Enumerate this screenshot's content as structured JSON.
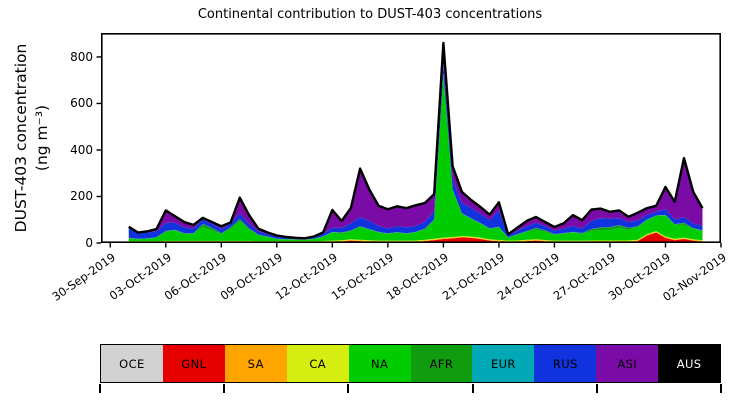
{
  "figure": {
    "title": "Continental contribution to DUST-403 concentrations"
  },
  "y_axis": {
    "label": "DUST-403 concentration",
    "unit_label": "(ng m⁻³)",
    "tick_values": [
      0,
      200,
      400,
      600,
      800
    ],
    "max_value": 903
  },
  "x_axis": {
    "tick_labels": [
      "30-Sep-2019",
      "03-Oct-2019",
      "06-Oct-2019",
      "09-Oct-2019",
      "12-Oct-2019",
      "15-Oct-2019",
      "18-Oct-2019",
      "21-Oct-2019",
      "24-Oct-2019",
      "27-Oct-2019",
      "30-Oct-2019",
      "02-Nov-2019"
    ],
    "tick_day_offsets": [
      -1,
      2,
      5,
      8,
      11,
      14,
      17,
      20,
      23,
      26,
      29,
      32
    ]
  },
  "legend": {
    "tick_boundaries": [
      0,
      2,
      4,
      6,
      8,
      10
    ]
  },
  "chart_data": {
    "type": "area",
    "stacked": true,
    "title": "Continental contribution to DUST-403 concentrations",
    "xlabel": "",
    "ylabel": "DUST-403 concentration (ng m⁻³)",
    "grid": false,
    "legend_position": "bottom",
    "ylim": [
      0,
      903
    ],
    "xlim_days": [
      -1.5,
      32
    ],
    "x_unit": "days since 01-Oct-2019 00:00 (0.5 = 12 h)",
    "x": [
      0,
      0.5,
      1,
      1.5,
      2,
      2.5,
      3,
      3.5,
      4,
      4.5,
      5,
      5.5,
      6,
      6.5,
      7,
      7.5,
      8,
      8.5,
      9,
      9.5,
      10,
      10.5,
      11,
      11.5,
      12,
      12.5,
      13,
      13.5,
      14,
      14.5,
      15,
      15.5,
      16,
      16.5,
      17,
      17.5,
      18,
      18.5,
      19,
      19.5,
      20,
      20.5,
      21,
      21.5,
      22,
      22.5,
      23,
      23.5,
      24,
      24.5,
      25,
      25.5,
      26,
      26.5,
      27,
      27.5,
      28,
      28.5,
      29,
      29.5,
      30,
      30.5,
      31
    ],
    "total_outline_color": "#000000",
    "series": [
      {
        "name": "OCE",
        "color": "#d2d2d2",
        "label_color": "#000000",
        "values": [
          2,
          2,
          2,
          2,
          2,
          2,
          2,
          2,
          2,
          2,
          2,
          2,
          2,
          2,
          2,
          2,
          2,
          2,
          2,
          2,
          2,
          2,
          2,
          2,
          2,
          2,
          2,
          2,
          2,
          2,
          2,
          2,
          2,
          2,
          2,
          2,
          2,
          2,
          2,
          2,
          2,
          2,
          2,
          2,
          2,
          2,
          2,
          2,
          2,
          2,
          2,
          2,
          2,
          2,
          2,
          2,
          2,
          2,
          2,
          2,
          2,
          2,
          2
        ]
      },
      {
        "name": "GNL",
        "color": "#e60000",
        "label_color": "#000000",
        "values": [
          0,
          0,
          0,
          0,
          1,
          1,
          1,
          1,
          1,
          1,
          1,
          1,
          1,
          1,
          0,
          0,
          0,
          0,
          0,
          0,
          0,
          1,
          2,
          4,
          8,
          6,
          4,
          2,
          2,
          2,
          2,
          3,
          6,
          10,
          15,
          18,
          22,
          20,
          15,
          8,
          5,
          2,
          3,
          6,
          8,
          5,
          2,
          2,
          2,
          2,
          3,
          3,
          3,
          3,
          3,
          6,
          30,
          43,
          20,
          10,
          15,
          8,
          4
        ]
      },
      {
        "name": "SA",
        "color": "#ffa500",
        "label_color": "#000000",
        "values": [
          3,
          3,
          3,
          3,
          3,
          3,
          3,
          3,
          3,
          3,
          3,
          3,
          3,
          3,
          3,
          3,
          3,
          3,
          3,
          3,
          3,
          3,
          3,
          3,
          3,
          3,
          3,
          3,
          3,
          3,
          3,
          3,
          3,
          3,
          3,
          3,
          3,
          3,
          3,
          3,
          3,
          3,
          3,
          3,
          3,
          3,
          3,
          3,
          3,
          3,
          3,
          3,
          3,
          3,
          3,
          3,
          3,
          3,
          3,
          3,
          3,
          3,
          3
        ]
      },
      {
        "name": "CA",
        "color": "#d6ed12",
        "label_color": "#000000",
        "values": [
          3,
          3,
          3,
          3,
          3,
          3,
          3,
          3,
          3,
          3,
          3,
          3,
          3,
          3,
          3,
          3,
          3,
          3,
          3,
          3,
          3,
          3,
          3,
          3,
          3,
          3,
          3,
          3,
          3,
          3,
          3,
          3,
          3,
          3,
          3,
          3,
          3,
          3,
          3,
          3,
          3,
          3,
          3,
          3,
          3,
          3,
          3,
          3,
          3,
          3,
          3,
          3,
          3,
          3,
          3,
          3,
          3,
          3,
          3,
          3,
          3,
          3,
          3
        ]
      },
      {
        "name": "NA",
        "color": "#00cc00",
        "label_color": "#000000",
        "values": [
          12,
          8,
          10,
          15,
          40,
          45,
          30,
          30,
          60,
          45,
          30,
          50,
          85,
          50,
          25,
          18,
          8,
          7,
          6,
          5,
          9,
          18,
          35,
          30,
          35,
          55,
          45,
          35,
          30,
          35,
          30,
          35,
          45,
          80,
          700,
          200,
          95,
          75,
          60,
          45,
          55,
          12,
          25,
          35,
          40,
          35,
          25,
          30,
          35,
          30,
          40,
          45,
          45,
          55,
          45,
          55,
          60,
          65,
          90,
          60,
          55,
          45,
          40
        ]
      },
      {
        "name": "AFR",
        "color": "#0f9d0f",
        "label_color": "#000000",
        "values": [
          1,
          1,
          1,
          1,
          2,
          2,
          2,
          2,
          12,
          10,
          2,
          8,
          8,
          3,
          2,
          1,
          1,
          1,
          1,
          1,
          1,
          1,
          2,
          2,
          2,
          2,
          2,
          2,
          1,
          1,
          1,
          1,
          2,
          2,
          3,
          3,
          2,
          2,
          2,
          1,
          1,
          1,
          1,
          1,
          8,
          6,
          2,
          2,
          2,
          2,
          8,
          10,
          12,
          10,
          8,
          2,
          2,
          2,
          2,
          2,
          8,
          2,
          2
        ]
      },
      {
        "name": "EUR",
        "color": "#00a9b5",
        "label_color": "#000000",
        "values": [
          1,
          1,
          1,
          1,
          1,
          1,
          1,
          1,
          1,
          1,
          1,
          1,
          1,
          1,
          1,
          1,
          1,
          1,
          1,
          1,
          1,
          1,
          1,
          1,
          1,
          1,
          1,
          1,
          1,
          1,
          1,
          1,
          1,
          1,
          1,
          1,
          1,
          1,
          1,
          1,
          1,
          1,
          1,
          1,
          1,
          1,
          1,
          1,
          1,
          1,
          1,
          1,
          1,
          1,
          1,
          1,
          1,
          1,
          1,
          1,
          1,
          1,
          1
        ]
      },
      {
        "name": "RUS",
        "color": "#1133dd",
        "label_color": "#000000",
        "values": [
          42,
          25,
          25,
          25,
          35,
          30,
          25,
          20,
          20,
          18,
          18,
          15,
          25,
          20,
          15,
          10,
          8,
          6,
          4,
          3,
          6,
          10,
          18,
          20,
          30,
          40,
          35,
          25,
          20,
          25,
          25,
          25,
          30,
          35,
          40,
          45,
          45,
          45,
          40,
          35,
          70,
          8,
          15,
          20,
          22,
          18,
          15,
          18,
          25,
          20,
          35,
          40,
          35,
          30,
          25,
          25,
          20,
          15,
          25,
          20,
          25,
          20,
          18
        ]
      },
      {
        "name": "ASI",
        "color": "#7b0ba6",
        "label_color": "#000000",
        "values": [
          6,
          2,
          5,
          10,
          53,
          28,
          23,
          16,
          6,
          7,
          12,
          5,
          67,
          37,
          11,
          7,
          6,
          3,
          2,
          2,
          3,
          6,
          76,
          30,
          66,
          208,
          135,
          87,
          83,
          86,
          83,
          89,
          80,
          74,
          93,
          55,
          47,
          34,
          29,
          24,
          35,
          5,
          13,
          24,
          25,
          17,
          16,
          24,
          47,
          35,
          49,
          41,
          30,
          33,
          23,
          33,
          29,
          26,
          95,
          76,
          253,
          136,
          77
        ]
      },
      {
        "name": "AUS",
        "color": "#000000",
        "label_color": "#ffffff",
        "values": [
          0,
          0,
          0,
          0,
          0,
          0,
          0,
          0,
          0,
          0,
          0,
          0,
          0,
          0,
          0,
          0,
          0,
          0,
          0,
          0,
          0,
          0,
          0,
          0,
          0,
          0,
          0,
          0,
          0,
          0,
          0,
          0,
          0,
          0,
          0,
          0,
          0,
          0,
          0,
          0,
          0,
          0,
          0,
          0,
          0,
          0,
          0,
          0,
          0,
          0,
          0,
          0,
          0,
          0,
          0,
          0,
          0,
          0,
          0,
          0,
          0,
          0,
          0
        ]
      }
    ]
  }
}
